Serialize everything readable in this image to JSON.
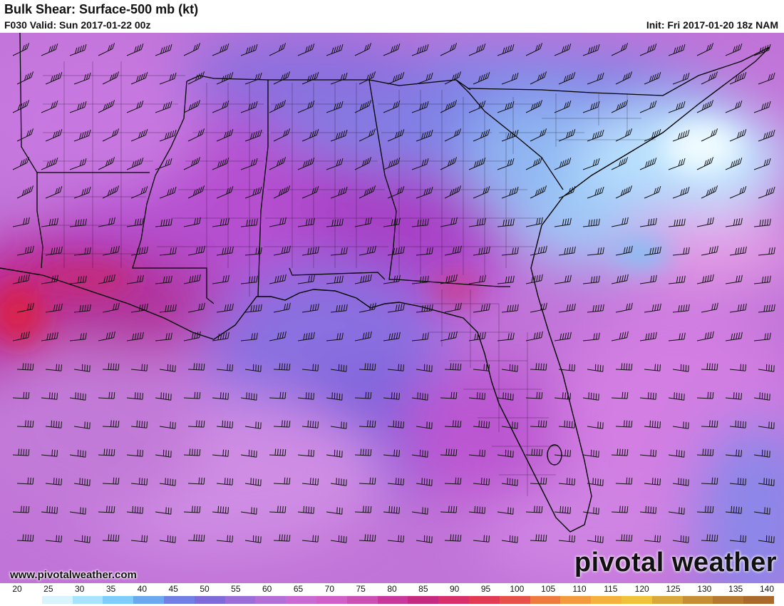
{
  "header": {
    "title": "Bulk Shear: Surface-500 mb (kt)",
    "valid": "F030 Valid: Sun 2017-01-22 00z",
    "init": "Init: Fri 2017-01-20 18z NAM"
  },
  "footer": {
    "website": "www.pivotalweather.com",
    "brand": "pivotal weather"
  },
  "legend": {
    "ticks": [
      "20",
      "25",
      "30",
      "35",
      "40",
      "45",
      "50",
      "55",
      "60",
      "65",
      "70",
      "75",
      "80",
      "85",
      "90",
      "95",
      "100",
      "105",
      "110",
      "115",
      "120",
      "125",
      "130",
      "135",
      "140"
    ],
    "colors": [
      "#ffffff",
      "#d9f3ff",
      "#a9e4ff",
      "#7fcdfb",
      "#6aa8f0",
      "#6f7fe3",
      "#7e6bd9",
      "#9a6dd8",
      "#b46fd6",
      "#c86ad2",
      "#d05fc7",
      "#cc4fb3",
      "#c8389a",
      "#c62a80",
      "#d8306a",
      "#e23a52",
      "#e8504a",
      "#ef7a3e",
      "#f39a3e",
      "#f4b23c",
      "#eec23a",
      "#d8a83a",
      "#c58e34",
      "#b4782e",
      "#a8692a"
    ]
  },
  "map": {
    "region": "Southeastern United States",
    "barb_color": "#111111",
    "icons": [
      "wind-barb-icon"
    ]
  }
}
